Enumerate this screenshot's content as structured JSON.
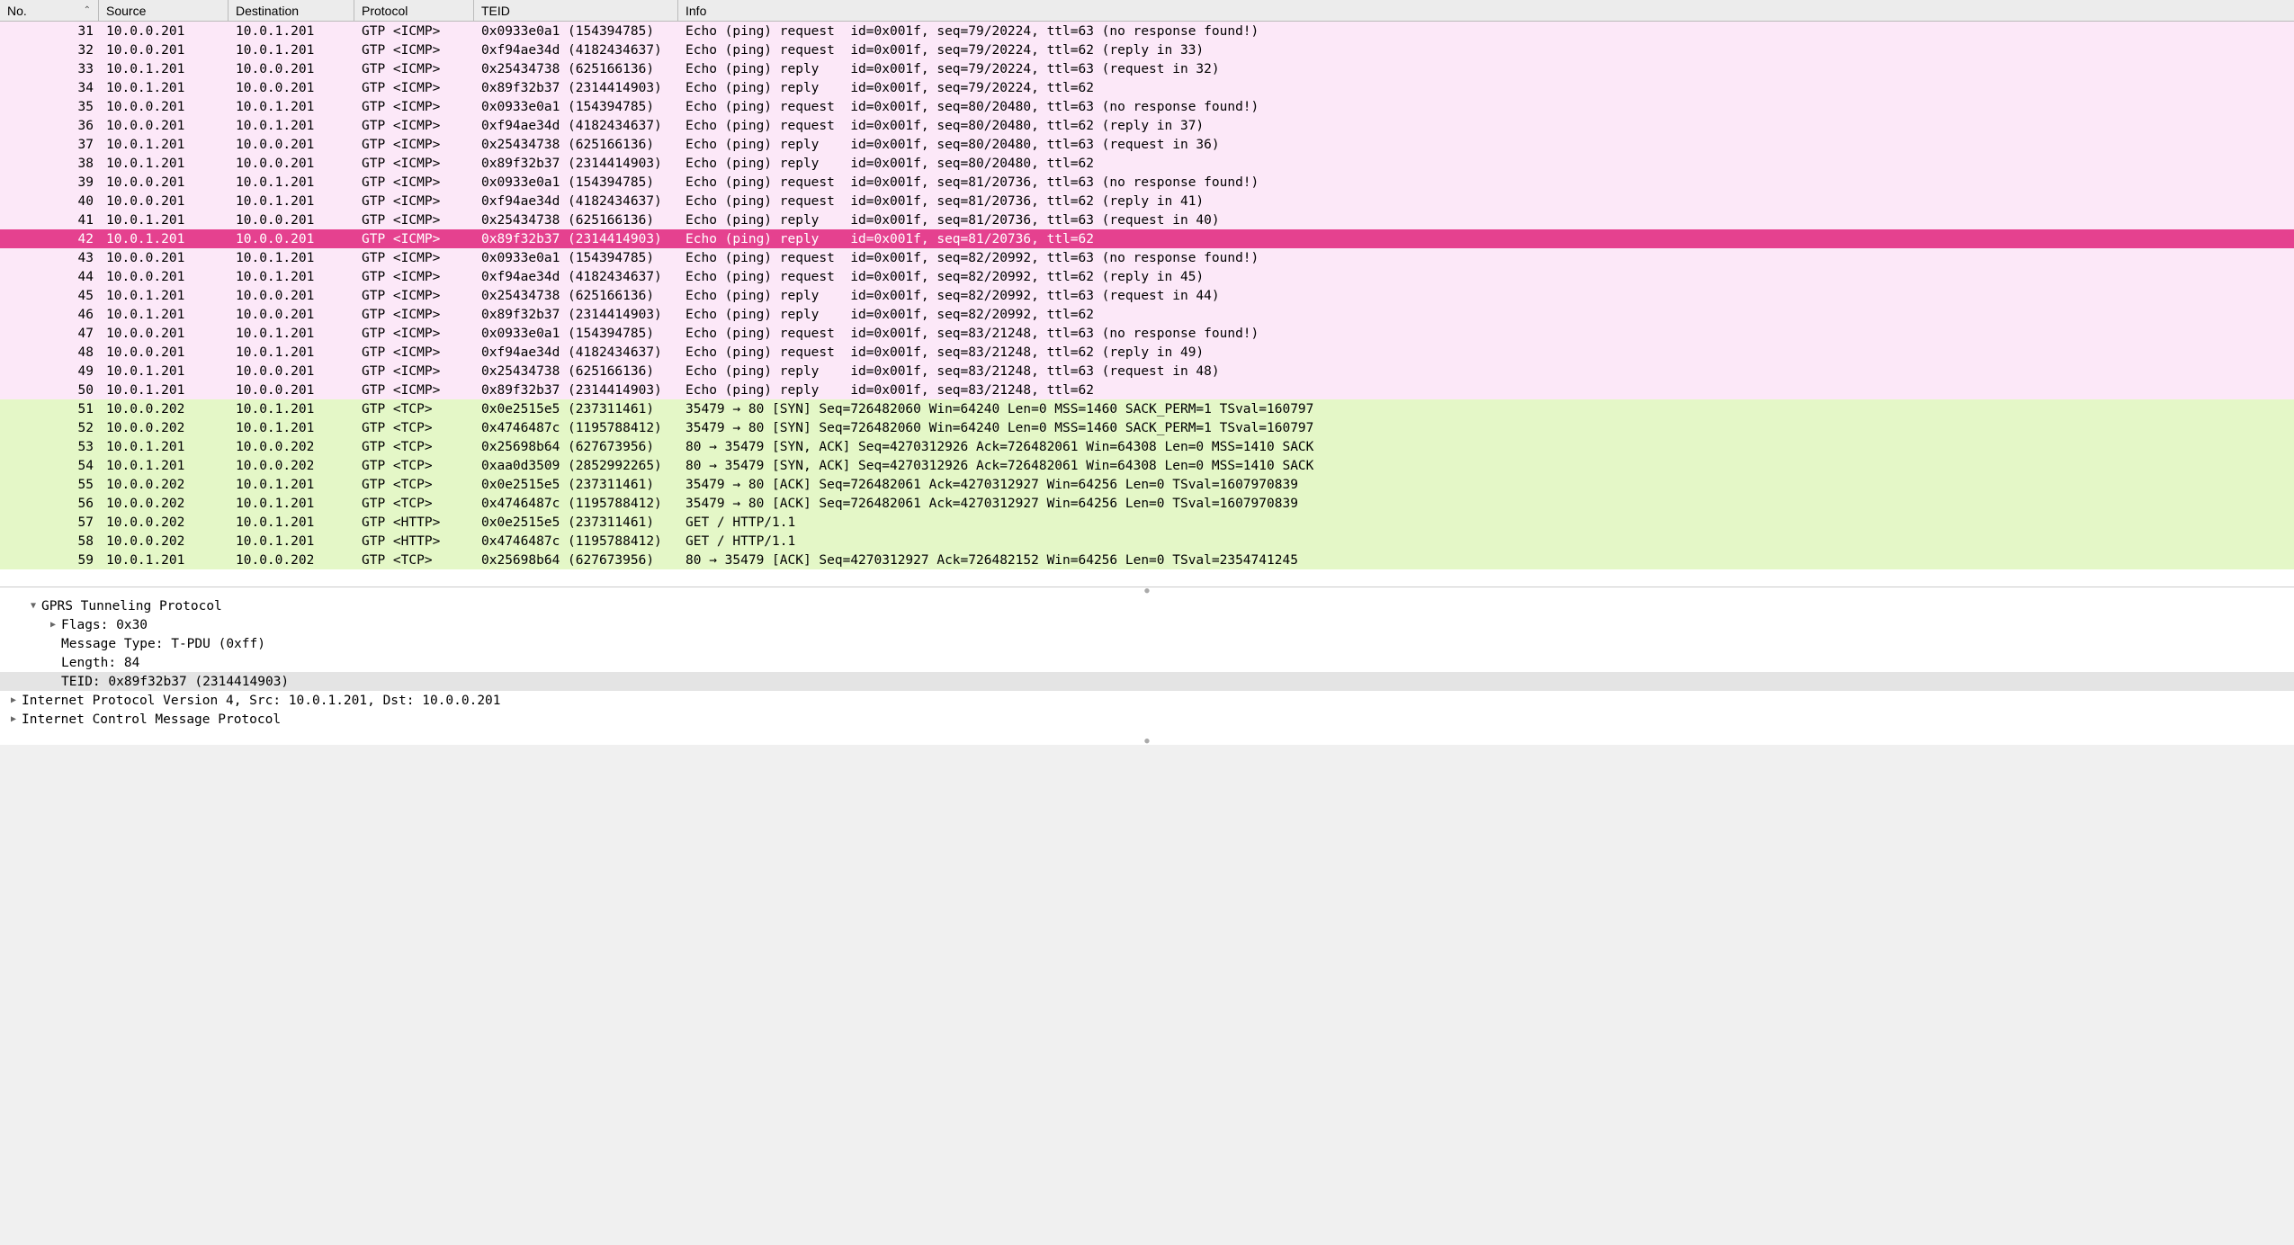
{
  "columns": {
    "no": "No.",
    "source": "Source",
    "destination": "Destination",
    "protocol": "Protocol",
    "teid": "TEID",
    "info": "Info"
  },
  "colors": {
    "icmp_bg": "#fce8f8",
    "tcp_bg": "#e4f7c7",
    "selected_bg": "#e5418f",
    "selected_fg": "#ffffff",
    "header_bg": "#ececec",
    "detail_highlight": "#e4e4e4"
  },
  "selected_index": 11,
  "packets": [
    {
      "no": "31",
      "src": "10.0.0.201",
      "dst": "10.0.1.201",
      "prot": "GTP <ICMP>",
      "teid": "0x0933e0a1 (154394785)",
      "info": "Echo (ping) request  id=0x001f, seq=79/20224, ttl=63 (no response found!)",
      "cls": "icmp"
    },
    {
      "no": "32",
      "src": "10.0.0.201",
      "dst": "10.0.1.201",
      "prot": "GTP <ICMP>",
      "teid": "0xf94ae34d (4182434637)",
      "info": "Echo (ping) request  id=0x001f, seq=79/20224, ttl=62 (reply in 33)",
      "cls": "icmp"
    },
    {
      "no": "33",
      "src": "10.0.1.201",
      "dst": "10.0.0.201",
      "prot": "GTP <ICMP>",
      "teid": "0x25434738 (625166136)",
      "info": "Echo (ping) reply    id=0x001f, seq=79/20224, ttl=63 (request in 32)",
      "cls": "icmp"
    },
    {
      "no": "34",
      "src": "10.0.1.201",
      "dst": "10.0.0.201",
      "prot": "GTP <ICMP>",
      "teid": "0x89f32b37 (2314414903)",
      "info": "Echo (ping) reply    id=0x001f, seq=79/20224, ttl=62",
      "cls": "icmp"
    },
    {
      "no": "35",
      "src": "10.0.0.201",
      "dst": "10.0.1.201",
      "prot": "GTP <ICMP>",
      "teid": "0x0933e0a1 (154394785)",
      "info": "Echo (ping) request  id=0x001f, seq=80/20480, ttl=63 (no response found!)",
      "cls": "icmp"
    },
    {
      "no": "36",
      "src": "10.0.0.201",
      "dst": "10.0.1.201",
      "prot": "GTP <ICMP>",
      "teid": "0xf94ae34d (4182434637)",
      "info": "Echo (ping) request  id=0x001f, seq=80/20480, ttl=62 (reply in 37)",
      "cls": "icmp"
    },
    {
      "no": "37",
      "src": "10.0.1.201",
      "dst": "10.0.0.201",
      "prot": "GTP <ICMP>",
      "teid": "0x25434738 (625166136)",
      "info": "Echo (ping) reply    id=0x001f, seq=80/20480, ttl=63 (request in 36)",
      "cls": "icmp"
    },
    {
      "no": "38",
      "src": "10.0.1.201",
      "dst": "10.0.0.201",
      "prot": "GTP <ICMP>",
      "teid": "0x89f32b37 (2314414903)",
      "info": "Echo (ping) reply    id=0x001f, seq=80/20480, ttl=62",
      "cls": "icmp"
    },
    {
      "no": "39",
      "src": "10.0.0.201",
      "dst": "10.0.1.201",
      "prot": "GTP <ICMP>",
      "teid": "0x0933e0a1 (154394785)",
      "info": "Echo (ping) request  id=0x001f, seq=81/20736, ttl=63 (no response found!)",
      "cls": "icmp"
    },
    {
      "no": "40",
      "src": "10.0.0.201",
      "dst": "10.0.1.201",
      "prot": "GTP <ICMP>",
      "teid": "0xf94ae34d (4182434637)",
      "info": "Echo (ping) request  id=0x001f, seq=81/20736, ttl=62 (reply in 41)",
      "cls": "icmp"
    },
    {
      "no": "41",
      "src": "10.0.1.201",
      "dst": "10.0.0.201",
      "prot": "GTP <ICMP>",
      "teid": "0x25434738 (625166136)",
      "info": "Echo (ping) reply    id=0x001f, seq=81/20736, ttl=63 (request in 40)",
      "cls": "icmp"
    },
    {
      "no": "42",
      "src": "10.0.1.201",
      "dst": "10.0.0.201",
      "prot": "GTP <ICMP>",
      "teid": "0x89f32b37 (2314414903)",
      "info": "Echo (ping) reply    id=0x001f, seq=81/20736, ttl=62",
      "cls": "icmp"
    },
    {
      "no": "43",
      "src": "10.0.0.201",
      "dst": "10.0.1.201",
      "prot": "GTP <ICMP>",
      "teid": "0x0933e0a1 (154394785)",
      "info": "Echo (ping) request  id=0x001f, seq=82/20992, ttl=63 (no response found!)",
      "cls": "icmp"
    },
    {
      "no": "44",
      "src": "10.0.0.201",
      "dst": "10.0.1.201",
      "prot": "GTP <ICMP>",
      "teid": "0xf94ae34d (4182434637)",
      "info": "Echo (ping) request  id=0x001f, seq=82/20992, ttl=62 (reply in 45)",
      "cls": "icmp"
    },
    {
      "no": "45",
      "src": "10.0.1.201",
      "dst": "10.0.0.201",
      "prot": "GTP <ICMP>",
      "teid": "0x25434738 (625166136)",
      "info": "Echo (ping) reply    id=0x001f, seq=82/20992, ttl=63 (request in 44)",
      "cls": "icmp"
    },
    {
      "no": "46",
      "src": "10.0.1.201",
      "dst": "10.0.0.201",
      "prot": "GTP <ICMP>",
      "teid": "0x89f32b37 (2314414903)",
      "info": "Echo (ping) reply    id=0x001f, seq=82/20992, ttl=62",
      "cls": "icmp"
    },
    {
      "no": "47",
      "src": "10.0.0.201",
      "dst": "10.0.1.201",
      "prot": "GTP <ICMP>",
      "teid": "0x0933e0a1 (154394785)",
      "info": "Echo (ping) request  id=0x001f, seq=83/21248, ttl=63 (no response found!)",
      "cls": "icmp"
    },
    {
      "no": "48",
      "src": "10.0.0.201",
      "dst": "10.0.1.201",
      "prot": "GTP <ICMP>",
      "teid": "0xf94ae34d (4182434637)",
      "info": "Echo (ping) request  id=0x001f, seq=83/21248, ttl=62 (reply in 49)",
      "cls": "icmp"
    },
    {
      "no": "49",
      "src": "10.0.1.201",
      "dst": "10.0.0.201",
      "prot": "GTP <ICMP>",
      "teid": "0x25434738 (625166136)",
      "info": "Echo (ping) reply    id=0x001f, seq=83/21248, ttl=63 (request in 48)",
      "cls": "icmp"
    },
    {
      "no": "50",
      "src": "10.0.1.201",
      "dst": "10.0.0.201",
      "prot": "GTP <ICMP>",
      "teid": "0x89f32b37 (2314414903)",
      "info": "Echo (ping) reply    id=0x001f, seq=83/21248, ttl=62",
      "cls": "icmp"
    },
    {
      "no": "51",
      "src": "10.0.0.202",
      "dst": "10.0.1.201",
      "prot": "GTP <TCP>",
      "teid": "0x0e2515e5 (237311461)",
      "info": "35479 → 80 [SYN] Seq=726482060 Win=64240 Len=0 MSS=1460 SACK_PERM=1 TSval=160797",
      "cls": "tcp"
    },
    {
      "no": "52",
      "src": "10.0.0.202",
      "dst": "10.0.1.201",
      "prot": "GTP <TCP>",
      "teid": "0x4746487c (1195788412)",
      "info": "35479 → 80 [SYN] Seq=726482060 Win=64240 Len=0 MSS=1460 SACK_PERM=1 TSval=160797",
      "cls": "tcp"
    },
    {
      "no": "53",
      "src": "10.0.1.201",
      "dst": "10.0.0.202",
      "prot": "GTP <TCP>",
      "teid": "0x25698b64 (627673956)",
      "info": "80 → 35479 [SYN, ACK] Seq=4270312926 Ack=726482061 Win=64308 Len=0 MSS=1410 SACK",
      "cls": "tcp"
    },
    {
      "no": "54",
      "src": "10.0.1.201",
      "dst": "10.0.0.202",
      "prot": "GTP <TCP>",
      "teid": "0xaa0d3509 (2852992265)",
      "info": "80 → 35479 [SYN, ACK] Seq=4270312926 Ack=726482061 Win=64308 Len=0 MSS=1410 SACK",
      "cls": "tcp"
    },
    {
      "no": "55",
      "src": "10.0.0.202",
      "dst": "10.0.1.201",
      "prot": "GTP <TCP>",
      "teid": "0x0e2515e5 (237311461)",
      "info": "35479 → 80 [ACK] Seq=726482061 Ack=4270312927 Win=64256 Len=0 TSval=1607970839 ",
      "cls": "tcp"
    },
    {
      "no": "56",
      "src": "10.0.0.202",
      "dst": "10.0.1.201",
      "prot": "GTP <TCP>",
      "teid": "0x4746487c (1195788412)",
      "info": "35479 → 80 [ACK] Seq=726482061 Ack=4270312927 Win=64256 Len=0 TSval=1607970839 ",
      "cls": "tcp"
    },
    {
      "no": "57",
      "src": "10.0.0.202",
      "dst": "10.0.1.201",
      "prot": "GTP <HTTP>",
      "teid": "0x0e2515e5 (237311461)",
      "info": "GET / HTTP/1.1",
      "cls": "http"
    },
    {
      "no": "58",
      "src": "10.0.0.202",
      "dst": "10.0.1.201",
      "prot": "GTP <HTTP>",
      "teid": "0x4746487c (1195788412)",
      "info": "GET / HTTP/1.1",
      "cls": "http"
    },
    {
      "no": "59",
      "src": "10.0.1.201",
      "dst": "10.0.0.202",
      "prot": "GTP <TCP>",
      "teid": "0x25698b64 (627673956)",
      "info": "80 → 35479 [ACK] Seq=4270312927 Ack=726482152 Win=64256 Len=0 TSval=2354741245 ",
      "cls": "tcp"
    }
  ],
  "details": [
    {
      "indent": 1,
      "tri": "open",
      "text": "GPRS Tunneling Protocol",
      "hl": false
    },
    {
      "indent": 2,
      "tri": "closed",
      "text": "Flags: 0x30",
      "hl": false
    },
    {
      "indent": 2,
      "tri": "none",
      "text": "Message Type: T-PDU (0xff)",
      "hl": false
    },
    {
      "indent": 2,
      "tri": "none",
      "text": "Length: 84",
      "hl": false
    },
    {
      "indent": 2,
      "tri": "none",
      "text": "TEID: 0x89f32b37 (2314414903)",
      "hl": true
    },
    {
      "indent": 0,
      "tri": "closed",
      "text": "Internet Protocol Version 4, Src: 10.0.1.201, Dst: 10.0.0.201",
      "hl": false
    },
    {
      "indent": 0,
      "tri": "closed",
      "text": "Internet Control Message Protocol",
      "hl": false
    }
  ]
}
